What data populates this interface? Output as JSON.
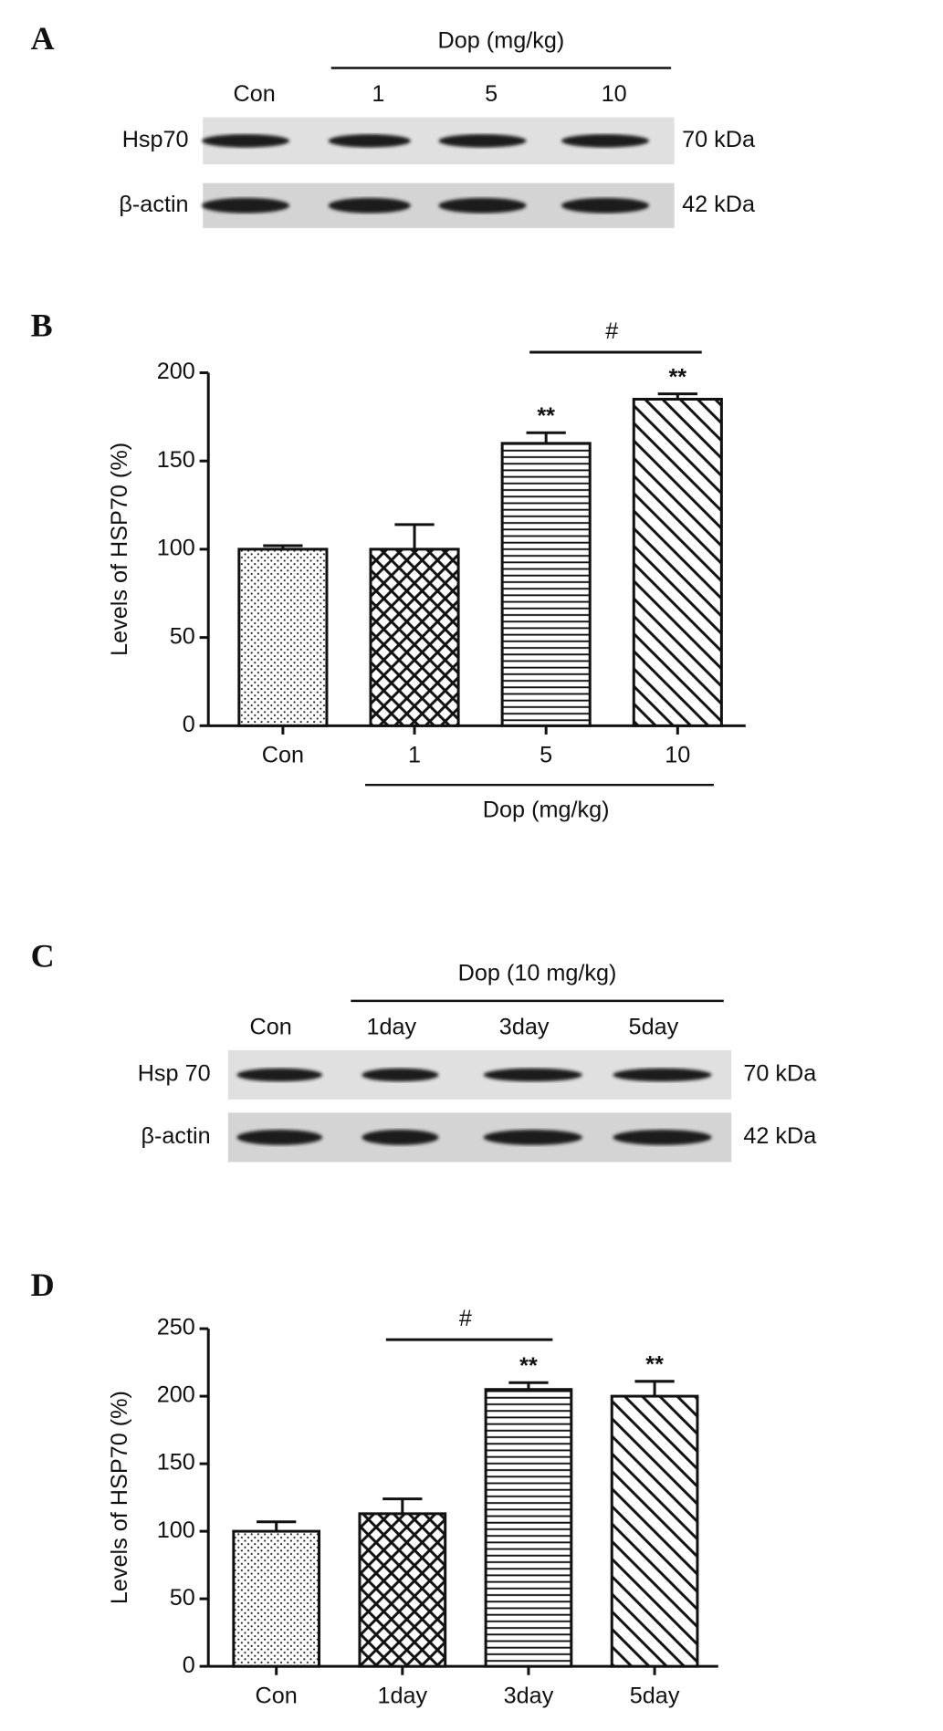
{
  "blots": [
    {
      "panel": "A",
      "group_label": "Dop (mg/kg)",
      "lanes": [
        "Con",
        "1",
        "5",
        "10"
      ],
      "rows": [
        {
          "name": "Hsp70",
          "size": "70 kDa"
        },
        {
          "name": "β-actin",
          "size": "42 kDa"
        }
      ]
    },
    {
      "panel": "C",
      "group_label": "Dop (10 mg/kg)",
      "lanes": [
        "Con",
        "1day",
        "3day",
        "5day"
      ],
      "rows": [
        {
          "name": "Hsp 70",
          "size": "70 kDa"
        },
        {
          "name": "β-actin",
          "size": "42 kDa"
        }
      ]
    }
  ],
  "chart_data": [
    {
      "type": "bar",
      "panel": "B",
      "ylabel": "Levels of HSP70 (%)",
      "categories": [
        "Con",
        "1",
        "5",
        "10"
      ],
      "values": [
        100,
        100,
        160,
        185
      ],
      "errors": [
        2,
        14,
        6,
        3
      ],
      "patterns": [
        "dots",
        "crosshatch",
        "horizontal",
        "diagonal"
      ],
      "significance": [
        null,
        null,
        "**",
        "**"
      ],
      "bracket": {
        "label": "#",
        "span": [
          2,
          3
        ]
      },
      "group_label": "Dop (mg/kg)",
      "group_span": [
        1,
        3
      ],
      "ylim": [
        0,
        200
      ],
      "yticks": [
        0,
        50,
        100,
        150,
        200
      ]
    },
    {
      "type": "bar",
      "panel": "D",
      "ylabel": "Levels of HSP70 (%)",
      "categories": [
        "Con",
        "1day",
        "3day",
        "5day"
      ],
      "values": [
        100,
        113,
        205,
        200
      ],
      "errors": [
        7,
        11,
        5,
        11
      ],
      "patterns": [
        "dots",
        "crosshatch",
        "horizontal",
        "diagonal"
      ],
      "significance": [
        null,
        null,
        "**",
        "**"
      ],
      "bracket": {
        "label": "#",
        "span": [
          1,
          2
        ]
      },
      "ylim": [
        0,
        250
      ],
      "yticks": [
        0,
        50,
        100,
        150,
        200,
        250
      ]
    }
  ]
}
